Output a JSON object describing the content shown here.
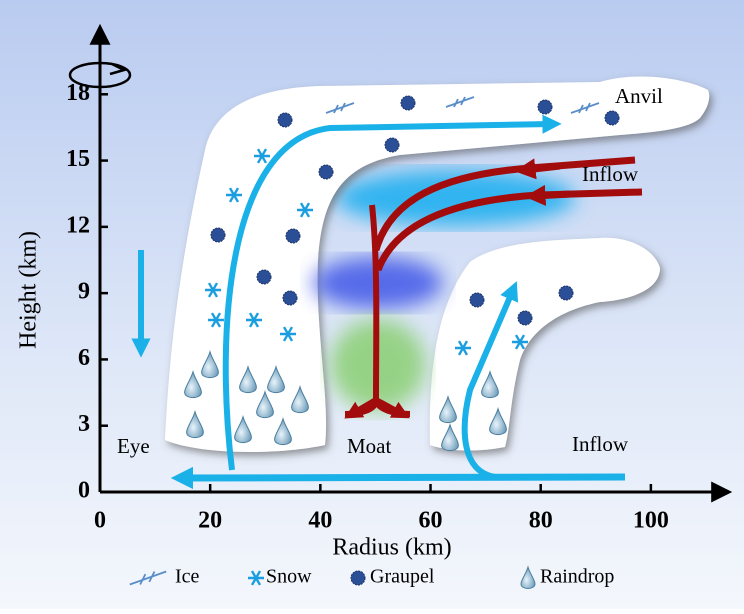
{
  "axes": {
    "x_label": "Radius (km)",
    "y_label": "Height (km)",
    "xlim": [
      0,
      114
    ],
    "ylim": [
      0,
      21
    ],
    "xticks": [
      0,
      20,
      40,
      60,
      80,
      100
    ],
    "yticks": [
      0,
      3,
      6,
      9,
      12,
      15,
      18
    ]
  },
  "annotations": {
    "anvil": "Anvil",
    "inflow_upper": "Inflow",
    "eye": "Eye",
    "moat": "Moat",
    "inflow_lower": "Inflow"
  },
  "legend": [
    "Ice",
    "Snow",
    "Graupel",
    "Raindrop"
  ]
}
